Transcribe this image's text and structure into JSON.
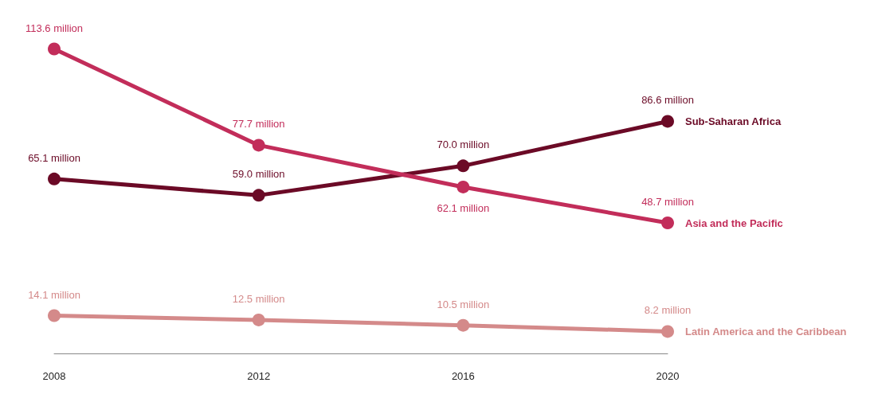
{
  "chart_data": {
    "type": "line",
    "categories": [
      "2008",
      "2012",
      "2016",
      "2020"
    ],
    "grid": false,
    "legend": false,
    "marker": "circle",
    "line_style": "solid",
    "series": [
      {
        "name": "Sub-Saharan Africa",
        "color": "#6b0a26",
        "values": [
          65.1,
          59.0,
          70.0,
          86.6
        ],
        "value_labels": [
          "65.1 million",
          "59.0 million",
          "70.0 million",
          "86.6 million"
        ]
      },
      {
        "name": "Asia and the Pacific",
        "color": "#c22d5a",
        "values": [
          113.6,
          77.7,
          62.1,
          48.7
        ],
        "value_labels": [
          "113.6 million",
          "77.7 million",
          "62.1 million",
          "48.7 million"
        ]
      },
      {
        "name": "Latin America and the Caribbean",
        "color": "#d48a8a",
        "values": [
          14.1,
          12.5,
          10.5,
          8.2
        ],
        "value_labels": [
          "14.1 million",
          "12.5 million",
          "10.5 million",
          "8.2 million"
        ]
      }
    ]
  }
}
